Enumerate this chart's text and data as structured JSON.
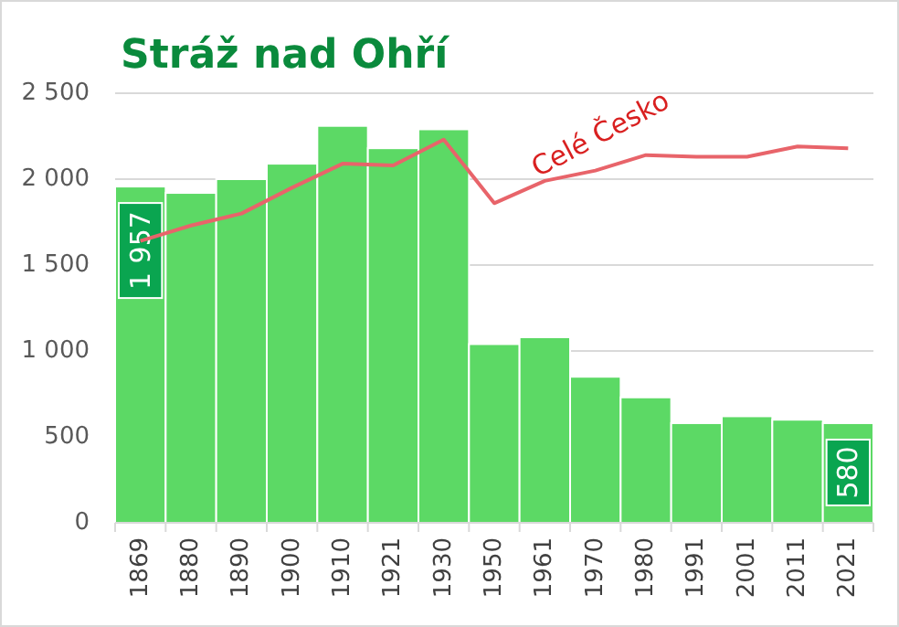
{
  "chart_data": {
    "type": "bar",
    "title": "Stráž nad Ohří",
    "categories": [
      "1869",
      "1880",
      "1890",
      "1900",
      "1910",
      "1921",
      "1930",
      "1950",
      "1961",
      "1970",
      "1980",
      "1991",
      "2001",
      "2011",
      "2021"
    ],
    "series": [
      {
        "color": "#5cd965",
        "values": [
          1957,
          1920,
          2000,
          2090,
          2310,
          2180,
          2290,
          1040,
          1080,
          850,
          730,
          580,
          620,
          600,
          580
        ],
        "value_labels": [
          "1 957",
          null,
          null,
          null,
          null,
          null,
          null,
          null,
          null,
          null,
          null,
          null,
          null,
          null,
          "580"
        ]
      },
      {
        "type": "line",
        "name": "Celé Česko",
        "color": "#e8646a",
        "values": [
          1640,
          1730,
          1800,
          1950,
          2090,
          2080,
          2230,
          1860,
          1990,
          2050,
          2140,
          2130,
          2130,
          2190,
          2180
        ]
      }
    ],
    "ylim": [
      0,
      2500
    ],
    "yticks": [
      {
        "value": 0,
        "label": "0"
      },
      {
        "value": 500,
        "label": "500"
      },
      {
        "value": 1000,
        "label": "1 000"
      },
      {
        "value": 1500,
        "label": "1 500"
      },
      {
        "value": 2000,
        "label": "2 000"
      },
      {
        "value": 2500,
        "label": "2 500"
      }
    ],
    "grid": "y"
  }
}
